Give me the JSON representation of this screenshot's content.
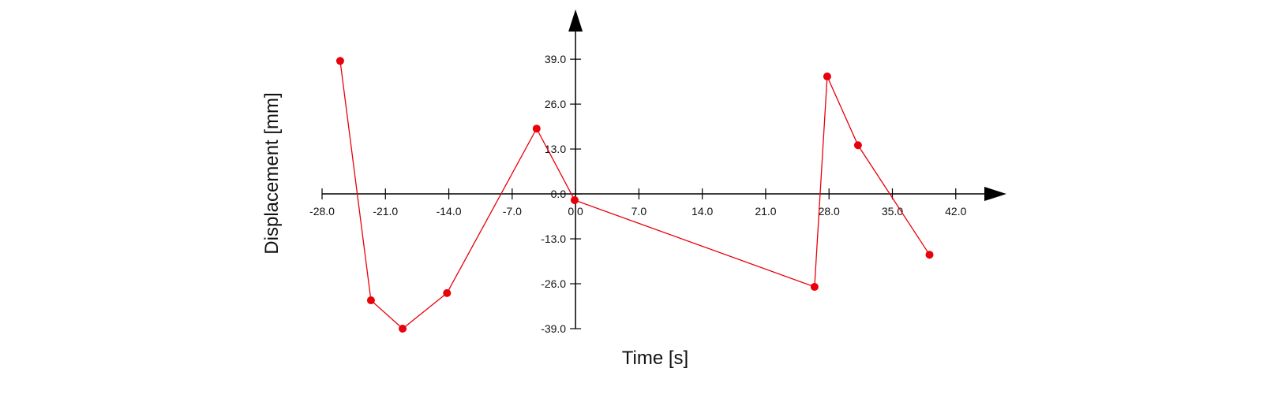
{
  "chart_data": {
    "type": "line",
    "x_label": "Time [s]",
    "y_label": "Displacement [mm]",
    "x": [
      -26.0,
      -22.6,
      -19.1,
      -14.2,
      -4.3,
      -0.1,
      26.4,
      27.8,
      31.2,
      39.1
    ],
    "values": [
      38.5,
      -30.8,
      -39.0,
      -28.7,
      18.9,
      -1.8,
      -26.9,
      34.0,
      14.1,
      -17.6
    ],
    "color": "#e8000b",
    "xlim": [
      -28,
      47.6
    ],
    "ylim": [
      -39,
      53.4
    ],
    "xticks": [
      {
        "value": -28,
        "label": "-28.0"
      },
      {
        "value": -21,
        "label": "-21.0"
      },
      {
        "value": -14,
        "label": "-14.0"
      },
      {
        "value": -7,
        "label": "-7.0"
      },
      {
        "value": 0,
        "label": "0.0"
      },
      {
        "value": 7,
        "label": "7.0"
      },
      {
        "value": 14,
        "label": "14.0"
      },
      {
        "value": 21,
        "label": "21.0"
      },
      {
        "value": 28,
        "label": "28.0"
      },
      {
        "value": 35,
        "label": "35.0"
      },
      {
        "value": 42,
        "label": "42.0"
      }
    ],
    "yticks": [
      {
        "value": -39,
        "label": "-39.0"
      },
      {
        "value": -26,
        "label": "-26.0"
      },
      {
        "value": -13,
        "label": "-13.0"
      },
      {
        "value": 0,
        "label": "0.0"
      },
      {
        "value": 13,
        "label": "13.0"
      },
      {
        "value": 26,
        "label": "26.0"
      },
      {
        "value": 39,
        "label": "39.0"
      }
    ]
  }
}
